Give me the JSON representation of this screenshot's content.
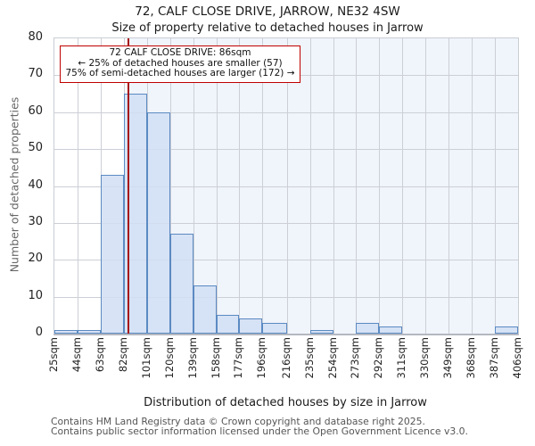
{
  "footer": {
    "line1": "Contains HM Land Registry data © Crown copyright and database right 2025.",
    "line2": "Contains public sector information licensed under the Open Government Licence v3.0."
  },
  "chart_data": {
    "type": "bar",
    "title": "72, CALF CLOSE DRIVE, JARROW, NE32 4SW",
    "subtitle": "Size of property relative to detached houses in Jarrow",
    "xlabel": "Distribution of detached houses by size in Jarrow",
    "ylabel": "Number of detached properties",
    "bin_edges_sqm": [
      25,
      44,
      63,
      82,
      101,
      120,
      139,
      158,
      177,
      196,
      216,
      235,
      254,
      273,
      292,
      311,
      330,
      349,
      368,
      387,
      406
    ],
    "x_tick_labels": [
      "25sqm",
      "44sqm",
      "63sqm",
      "82sqm",
      "101sqm",
      "120sqm",
      "139sqm",
      "158sqm",
      "177sqm",
      "196sqm",
      "216sqm",
      "235sqm",
      "254sqm",
      "273sqm",
      "292sqm",
      "311sqm",
      "330sqm",
      "349sqm",
      "368sqm",
      "387sqm",
      "406sqm"
    ],
    "values": [
      1,
      1,
      43,
      65,
      60,
      27,
      13,
      5,
      4,
      3,
      0,
      1,
      0,
      3,
      2,
      0,
      0,
      0,
      0,
      2
    ],
    "ylim": [
      0,
      80
    ],
    "y_ticks": [
      0,
      10,
      20,
      30,
      40,
      50,
      60,
      70,
      80
    ],
    "grid": true,
    "legend": "none",
    "marker": {
      "value_sqm": 86,
      "label": "72 CALF CLOSE DRIVE: 86sqm"
    },
    "annotation": {
      "line1": "72 CALF CLOSE DRIVE: 86sqm",
      "line2": "← 25% of detached houses are smaller (57)",
      "line3": "75% of semi-detached houses are larger (172) →"
    },
    "colors": {
      "bar_fill": "rgba(209,222,243,0.85)",
      "bar_border": "#5b8ac2",
      "marker_line": "#a50f15",
      "shade_right_of_marker": "#f0f4fb",
      "grid_line": "#cccfd6",
      "annotation_border": "#c00000"
    }
  }
}
